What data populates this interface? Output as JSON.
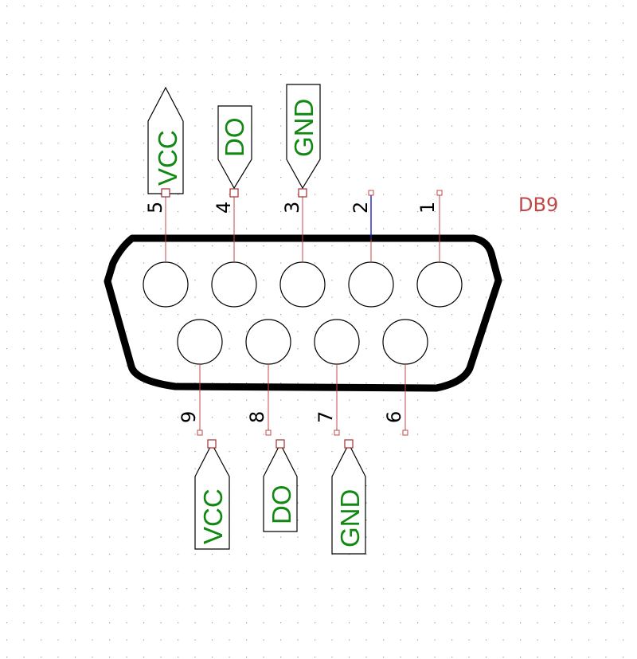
{
  "component": {
    "reference": "DB9",
    "pins": [
      {
        "number": "1"
      },
      {
        "number": "2"
      },
      {
        "number": "3"
      },
      {
        "number": "4"
      },
      {
        "number": "5"
      },
      {
        "number": "6"
      },
      {
        "number": "7"
      },
      {
        "number": "8"
      },
      {
        "number": "9"
      }
    ]
  },
  "net_labels": {
    "pin5": "VCC",
    "pin4": "DO",
    "pin3": "GND",
    "pin9": "VCC",
    "pin8": "DO",
    "pin7": "GND"
  },
  "colors": {
    "net_label_text": "#118811",
    "pin_line": "#c04848",
    "reference_text": "#c04848",
    "wire": "#2020c0",
    "grid_dot": "#9a9a9a"
  }
}
